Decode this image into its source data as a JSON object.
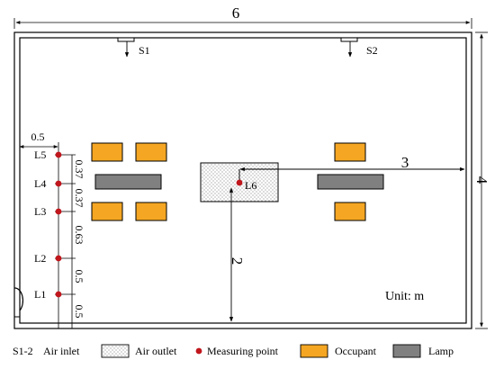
{
  "dimensions": {
    "width": "6",
    "height": "4",
    "lamp_to_wall": "3",
    "outlet_to_wall": "2",
    "probe_offset": "0.5",
    "spacing_l5_l4": "0.37",
    "spacing_l4_l3": "0.37",
    "spacing_l3_l2": "0.63",
    "spacing_l2_l1": "0.5",
    "spacing_l1_floor": "0.5"
  },
  "inlets": {
    "s1": "S1",
    "s2": "S2"
  },
  "measuring_points": {
    "l1": "L1",
    "l2": "L2",
    "l3": "L3",
    "l4": "L4",
    "l5": "L5",
    "l6": "L6"
  },
  "unit_label": "Unit: m",
  "legend": {
    "inlet_label": "S1-2",
    "inlet_text": "Air inlet",
    "outlet_text": "Air outlet",
    "measuring_text": "Measuring point",
    "occupant_text": "Occupant",
    "lamp_text": "Lamp"
  },
  "colors": {
    "occupant": "#F5A623",
    "lamp": "#808080",
    "measuring_point": "#C0161C",
    "line": "#000000"
  }
}
